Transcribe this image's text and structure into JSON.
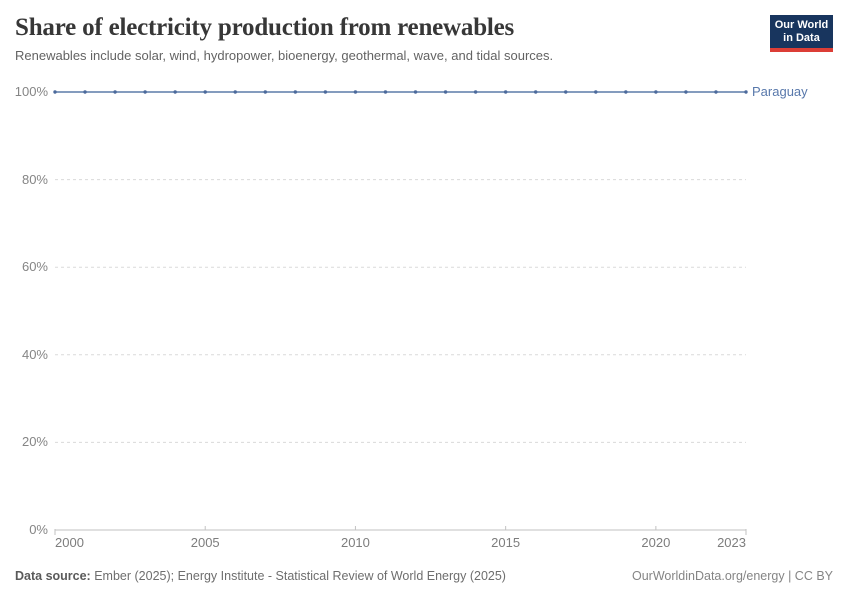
{
  "header": {
    "title": "Share of electricity production from renewables",
    "subtitle": "Renewables include solar, wind, hydropower, bioenergy, geothermal, wave, and tidal sources.",
    "logo": {
      "line1": "Our World",
      "line2": "in Data"
    }
  },
  "chart_data": {
    "type": "line",
    "title": "Share of electricity production from renewables",
    "subtitle": "Renewables include solar, wind, hydropower, bioenergy, geothermal, wave, and tidal sources.",
    "x": [
      2000,
      2001,
      2002,
      2003,
      2004,
      2005,
      2006,
      2007,
      2008,
      2009,
      2010,
      2011,
      2012,
      2013,
      2014,
      2015,
      2016,
      2017,
      2018,
      2019,
      2020,
      2021,
      2022,
      2023
    ],
    "series": [
      {
        "name": "Paraguay",
        "values": [
          100,
          100,
          100,
          100,
          100,
          100,
          100,
          100,
          100,
          100,
          100,
          100,
          100,
          100,
          100,
          100,
          100,
          100,
          100,
          100,
          100,
          100,
          100,
          100
        ]
      }
    ],
    "xlabel": "",
    "ylabel": "",
    "ylim": [
      0,
      100
    ],
    "xlim": [
      2000,
      2023
    ],
    "x_ticks": [
      2000,
      2005,
      2010,
      2015,
      2020,
      2023
    ],
    "y_ticks": [
      {
        "value": 0,
        "label": "0%"
      },
      {
        "value": 20,
        "label": "20%"
      },
      {
        "value": 40,
        "label": "40%"
      },
      {
        "value": 60,
        "label": "60%"
      },
      {
        "value": 80,
        "label": "80%"
      },
      {
        "value": 100,
        "label": "100%"
      }
    ],
    "grid": "horizontal-dashed",
    "legend_position": "label-right-of-line-end",
    "colors": {
      "line": "#5b7ba8",
      "point": "#4c6a9c",
      "series_label": "#5878ab",
      "grid": "#dadada",
      "axis": "#c2c2c2"
    }
  },
  "footer": {
    "source_label": "Data source:",
    "source_text": " Ember (2025); Energy Institute - Statistical Review of World Energy (2025)",
    "right_text": "OurWorldinData.org/energy | CC BY"
  }
}
